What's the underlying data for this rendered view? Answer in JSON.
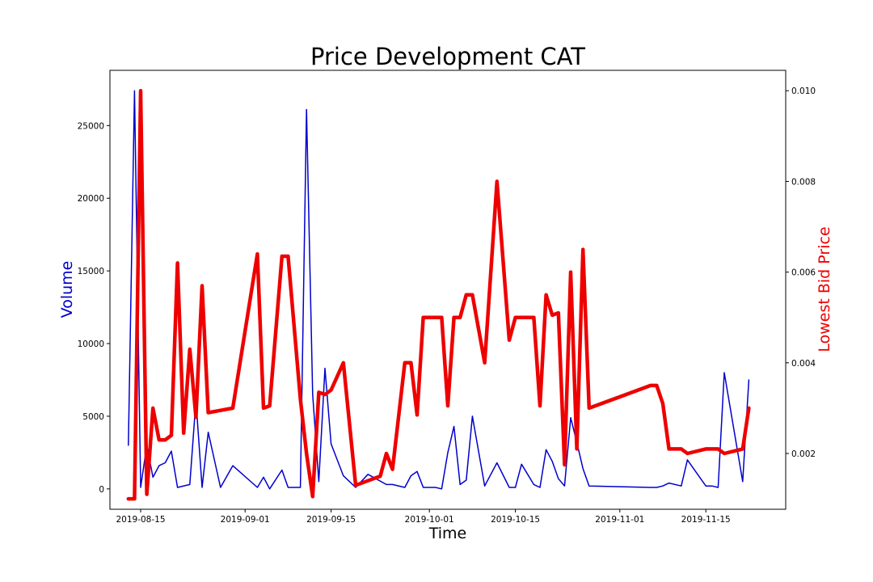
{
  "chart_data": {
    "type": "line",
    "title": "Price Development CAT",
    "xlabel": "Time",
    "ylabel_left": "Volume",
    "ylabel_right": "Lowest Bid Price",
    "x_ticks": [
      "2019-08-15",
      "2019-09-01",
      "2019-09-15",
      "2019-10-01",
      "2019-10-15",
      "2019-11-01",
      "2019-11-15"
    ],
    "y_left_ticks": [
      "0",
      "5000",
      "10000",
      "15000",
      "20000",
      "25000"
    ],
    "y_right_ticks": [
      "0.002",
      "0.004",
      "0.006",
      "0.008",
      "0.010"
    ],
    "x_range": [
      "2019-08-10",
      "2019-11-28"
    ],
    "ylim_left": [
      -1400,
      28800
    ],
    "ylim_right": [
      0.00077,
      0.01045
    ],
    "grid": false,
    "colors": {
      "volume": "#0000cc",
      "price": "#ee0000"
    },
    "series": [
      {
        "axis": "left",
        "x": [
          "2019-08-13",
          "2019-08-14",
          "2019-08-15",
          "2019-08-16",
          "2019-08-17",
          "2019-08-18",
          "2019-08-19",
          "2019-08-20",
          "2019-08-21",
          "2019-08-23",
          "2019-08-24",
          "2019-08-25",
          "2019-08-26",
          "2019-08-28",
          "2019-08-30",
          "2019-09-03",
          "2019-09-04",
          "2019-09-05",
          "2019-09-07",
          "2019-09-08",
          "2019-09-10",
          "2019-09-11",
          "2019-09-12",
          "2019-09-13",
          "2019-09-14",
          "2019-09-15",
          "2019-09-17",
          "2019-09-19",
          "2019-09-21",
          "2019-09-24",
          "2019-09-25",
          "2019-09-27",
          "2019-09-28",
          "2019-09-29",
          "2019-09-30",
          "2019-10-02",
          "2019-10-03",
          "2019-10-04",
          "2019-10-05",
          "2019-10-06",
          "2019-10-07",
          "2019-10-08",
          "2019-10-10",
          "2019-10-12",
          "2019-10-14",
          "2019-10-15",
          "2019-10-16",
          "2019-10-18",
          "2019-10-19",
          "2019-10-20",
          "2019-10-21",
          "2019-10-22",
          "2019-10-23",
          "2019-10-24",
          "2019-10-25",
          "2019-10-26",
          "2019-10-27",
          "2019-11-06",
          "2019-11-07",
          "2019-11-08",
          "2019-11-09",
          "2019-11-11",
          "2019-11-12",
          "2019-11-15",
          "2019-11-16",
          "2019-11-17",
          "2019-11-18",
          "2019-11-21",
          "2019-11-22"
        ],
        "values": [
          3000,
          27400,
          100,
          3000,
          800,
          1600,
          1800,
          2600,
          100,
          300,
          6100,
          100,
          3900,
          100,
          1600,
          100,
          800,
          0,
          1300,
          100,
          100,
          26100,
          6500,
          500,
          8300,
          3100,
          900,
          100,
          1000,
          300,
          300,
          100,
          900,
          1200,
          100,
          100,
          0,
          2500,
          4300,
          300,
          600,
          5000,
          200,
          1800,
          100,
          100,
          1700,
          300,
          100,
          2700,
          1900,
          700,
          200,
          4900,
          3200,
          1400,
          200,
          100,
          100,
          200,
          400,
          200,
          2000,
          200,
          200,
          100,
          8000,
          500,
          7500
        ]
      },
      {
        "axis": "right",
        "x": [
          "2019-08-13",
          "2019-08-14",
          "2019-08-15",
          "2019-08-16",
          "2019-08-17",
          "2019-08-18",
          "2019-08-19",
          "2019-08-20",
          "2019-08-21",
          "2019-08-22",
          "2019-08-23",
          "2019-08-24",
          "2019-08-25",
          "2019-08-26",
          "2019-08-28",
          "2019-08-30",
          "2019-09-03",
          "2019-09-04",
          "2019-09-05",
          "2019-09-07",
          "2019-09-08",
          "2019-09-10",
          "2019-09-11",
          "2019-09-12",
          "2019-09-13",
          "2019-09-14",
          "2019-09-15",
          "2019-09-17",
          "2019-09-19",
          "2019-09-21",
          "2019-09-23",
          "2019-09-24",
          "2019-09-25",
          "2019-09-27",
          "2019-09-28",
          "2019-09-29",
          "2019-09-30",
          "2019-10-02",
          "2019-10-03",
          "2019-10-04",
          "2019-10-05",
          "2019-10-06",
          "2019-10-07",
          "2019-10-08",
          "2019-10-10",
          "2019-10-12",
          "2019-10-14",
          "2019-10-15",
          "2019-10-16",
          "2019-10-18",
          "2019-10-19",
          "2019-10-20",
          "2019-10-21",
          "2019-10-22",
          "2019-10-23",
          "2019-10-24",
          "2019-10-25",
          "2019-10-26",
          "2019-10-27",
          "2019-11-06",
          "2019-11-07",
          "2019-11-08",
          "2019-11-09",
          "2019-11-11",
          "2019-11-12",
          "2019-11-15",
          "2019-11-16",
          "2019-11-17",
          "2019-11-18",
          "2019-11-21",
          "2019-11-22"
        ],
        "values": [
          0.001,
          0.001,
          0.01,
          0.0011,
          0.003,
          0.0023,
          0.0023,
          0.0024,
          0.0062,
          0.00245,
          0.0043,
          0.0028,
          0.0057,
          0.0029,
          0.00295,
          0.003,
          0.0064,
          0.003,
          0.00305,
          0.00635,
          0.00635,
          0.0032,
          0.002,
          0.00105,
          0.00335,
          0.0033,
          0.0034,
          0.004,
          0.0013,
          0.0014,
          0.0015,
          0.002,
          0.00165,
          0.004,
          0.004,
          0.00285,
          0.005,
          0.005,
          0.005,
          0.00305,
          0.005,
          0.005,
          0.0055,
          0.0055,
          0.004,
          0.008,
          0.0045,
          0.005,
          0.005,
          0.005,
          0.00305,
          0.0055,
          0.00505,
          0.0051,
          0.00175,
          0.006,
          0.0021,
          0.0065,
          0.003,
          0.0035,
          0.0035,
          0.0031,
          0.0021,
          0.0021,
          0.002,
          0.0021,
          0.0021,
          0.0021,
          0.002,
          0.0021,
          0.003
        ]
      }
    ]
  }
}
